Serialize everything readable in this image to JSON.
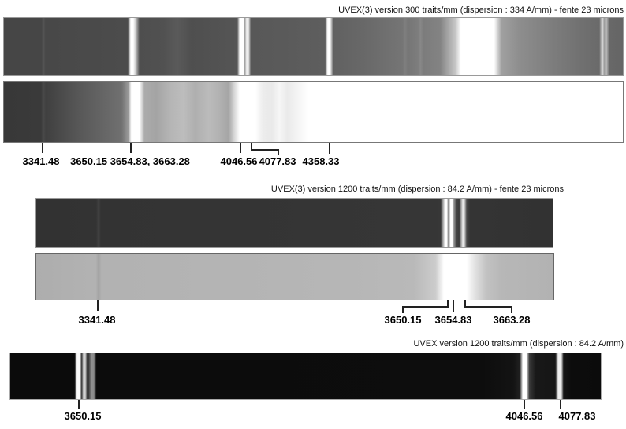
{
  "figure": {
    "background_color": "#ffffff",
    "text_color": "#000000"
  },
  "sections": [
    {
      "title": "UVEX(3) version 300 traits/mm (dispersion : 334 A/mm) - fente 23 microns",
      "strips": [
        "normal-exposure-spectrum",
        "overexposed-spectrum"
      ],
      "labels": [
        {
          "text": "3341.48"
        },
        {
          "text": "3650.15 3654.83, 3663.28"
        },
        {
          "text": "4046.56"
        },
        {
          "text": "4077.83"
        },
        {
          "text": "4358.33"
        }
      ]
    },
    {
      "title": "UVEX(3) version 1200 traits/mm (dispersion : 84.2 A/mm) - fente 23 microns",
      "strips": [
        "normal-exposure-spectrum",
        "overexposed-spectrum"
      ],
      "labels": [
        {
          "text": "3341.48"
        },
        {
          "text": "3650.15"
        },
        {
          "text": "3654.83"
        },
        {
          "text": "3663.28"
        }
      ]
    },
    {
      "title": "UVEX version 1200 traits/mm (dispersion : 84.2 A/mm)",
      "strips": [
        "normal-exposure-spectrum"
      ],
      "labels": [
        {
          "text": "3650.15"
        },
        {
          "text": "4046.56"
        },
        {
          "text": "4077.83"
        }
      ]
    }
  ]
}
